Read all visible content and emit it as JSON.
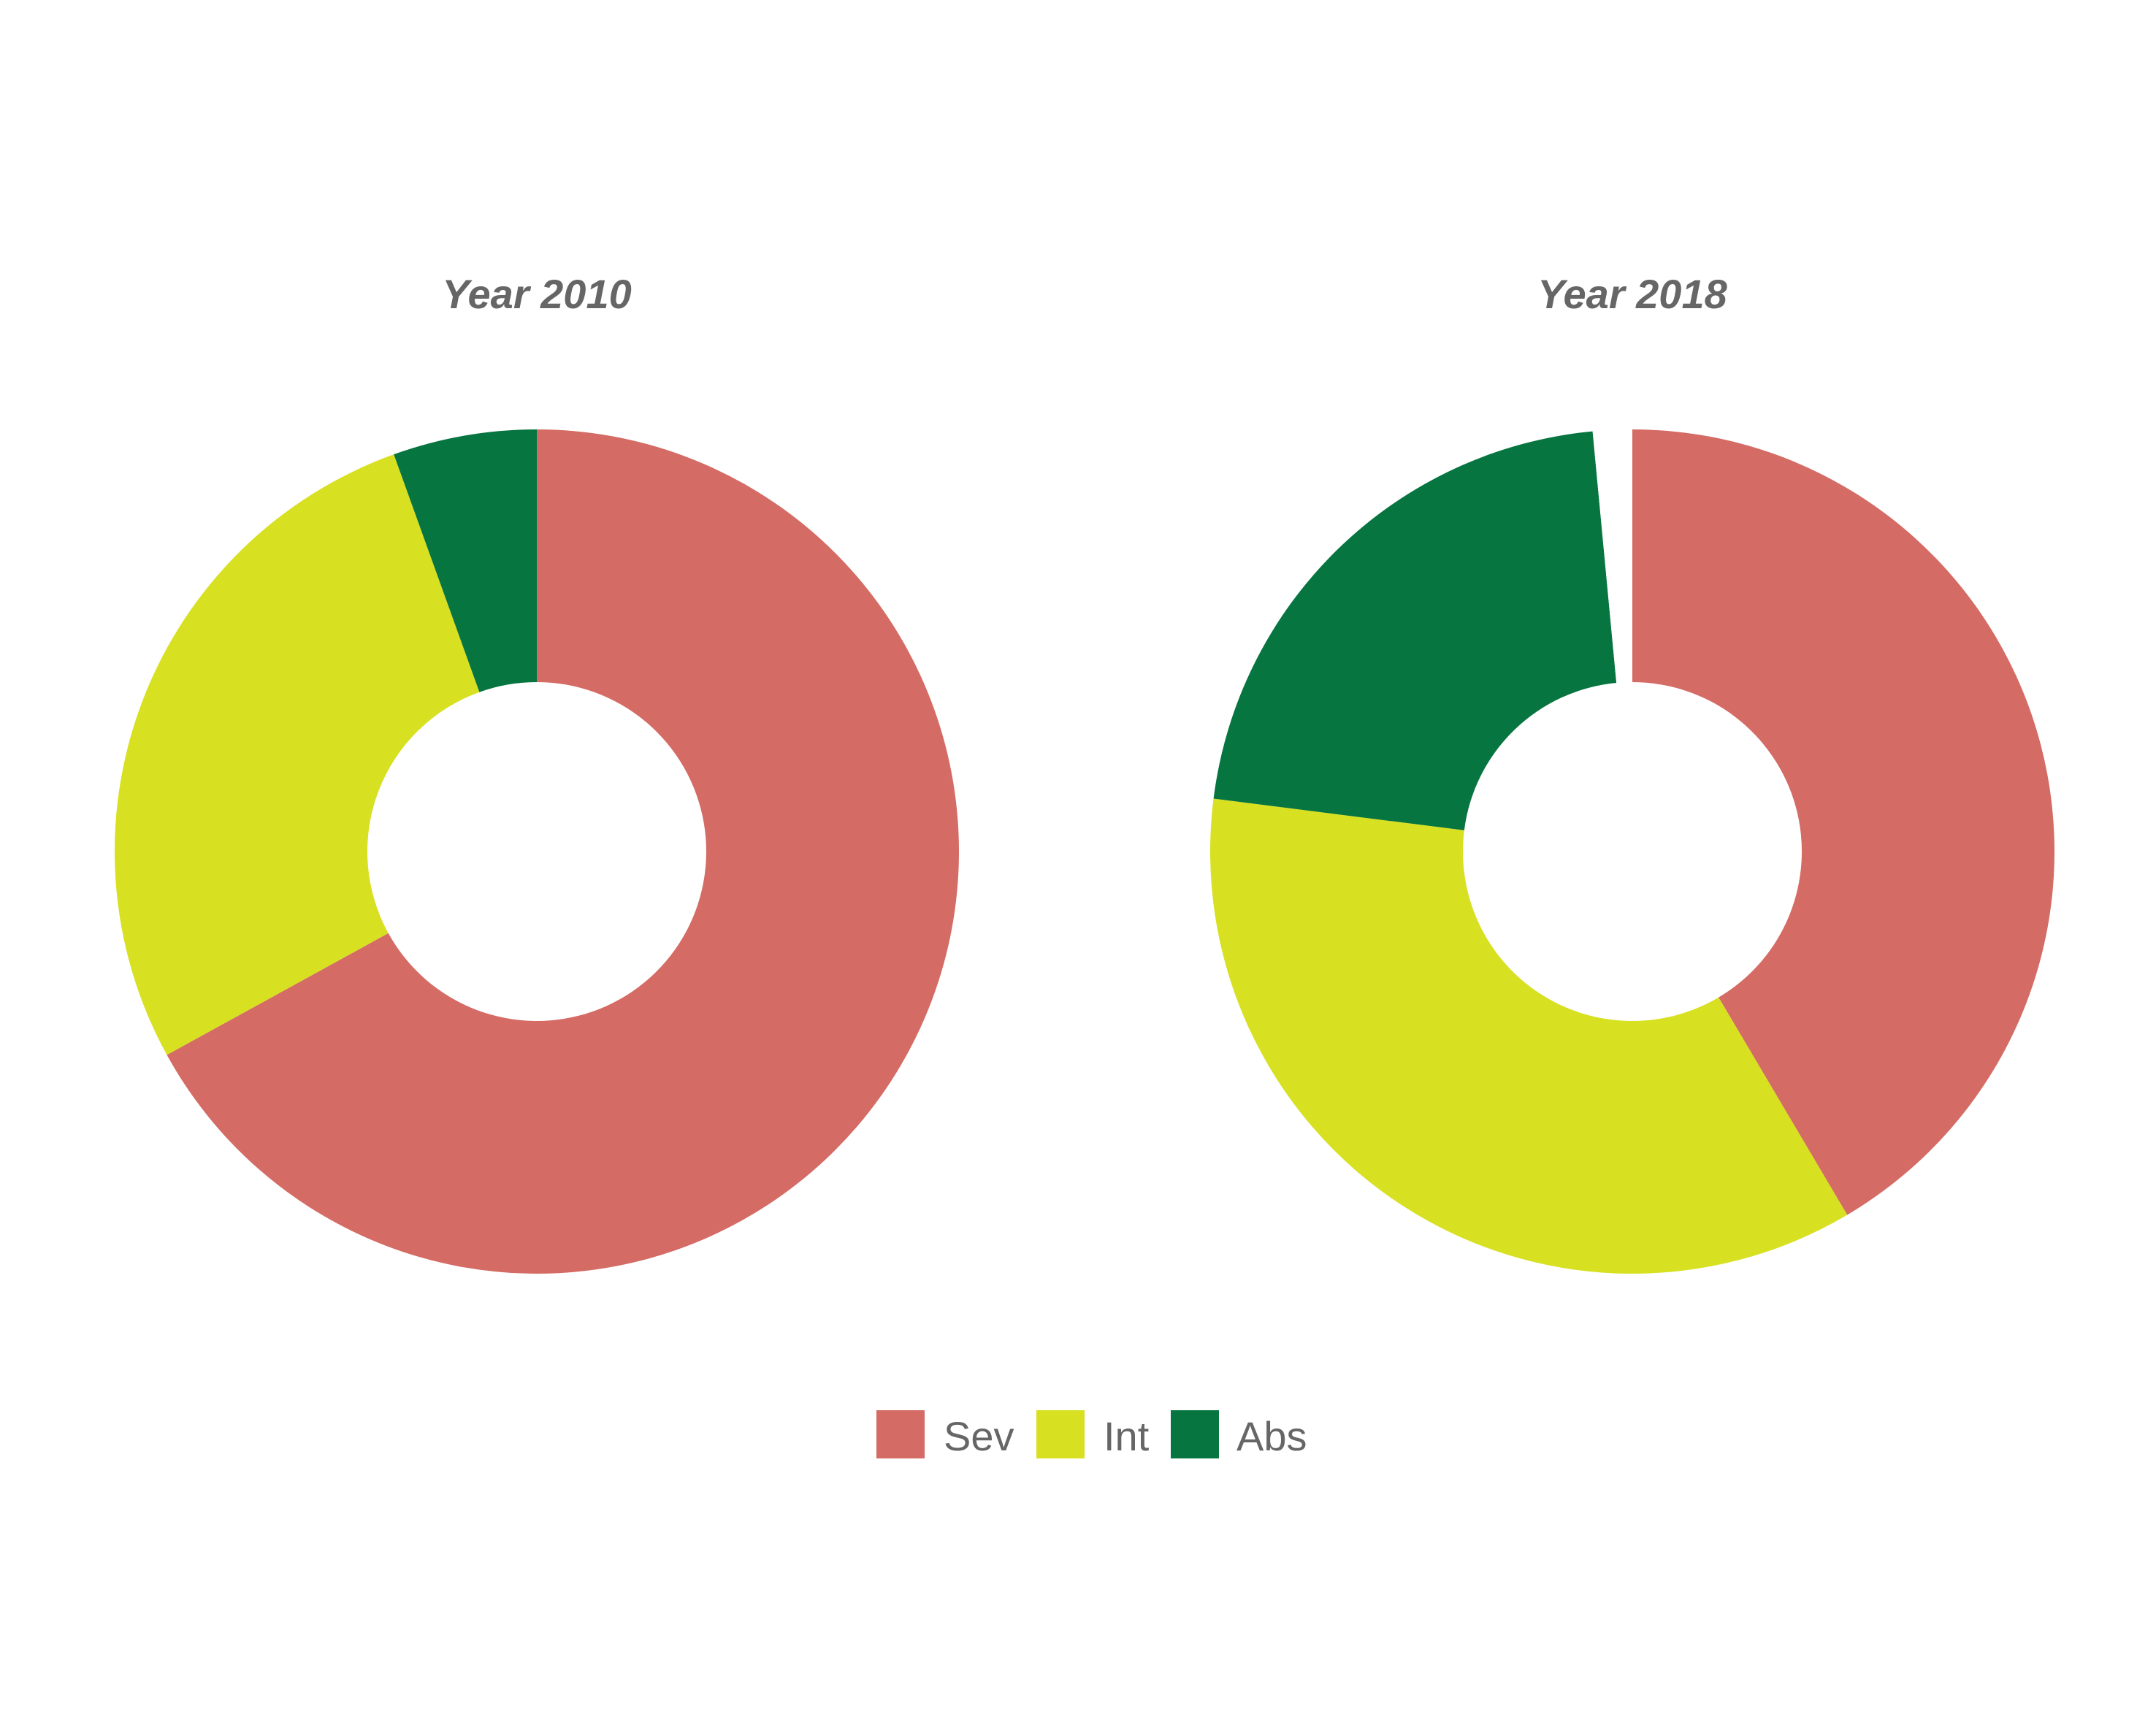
{
  "chart_data": [
    {
      "type": "pie",
      "variant": "donut",
      "title": "Year 2010",
      "categories": [
        "Sev",
        "Int",
        "Abs"
      ],
      "values": [
        67,
        27.5,
        5.5
      ],
      "start": "top",
      "direction": "clockwise"
    },
    {
      "type": "pie",
      "variant": "donut",
      "title": "Year 2018",
      "categories": [
        "Sev",
        "Int",
        "Abs",
        ""
      ],
      "values": [
        41.5,
        35.5,
        21.5,
        1.5
      ],
      "start": "top",
      "direction": "clockwise"
    }
  ],
  "legend": {
    "placement": "bottom",
    "items": [
      {
        "label": "Sev",
        "color": "#d46b64"
      },
      {
        "label": "Int",
        "color": "#d7e021"
      },
      {
        "label": "Abs",
        "color": "#067540"
      }
    ]
  },
  "colors": {
    "Sev": "#d46b64",
    "Int": "#d7e021",
    "Abs": "#067540",
    "": "#ffffff"
  }
}
